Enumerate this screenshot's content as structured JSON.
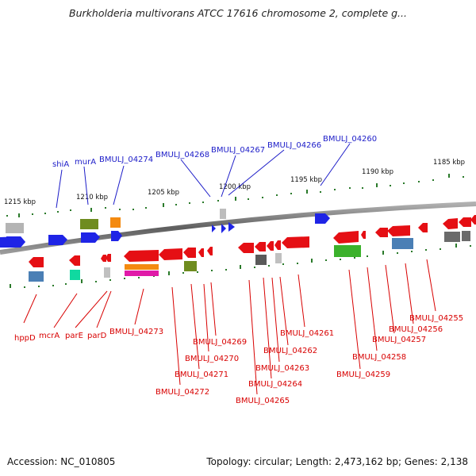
{
  "header": {
    "title": "Burkholderia multivorans ATCC 17616 chromosome 2, complete g..."
  },
  "footer": {
    "accession": "Accession: NC_010805",
    "stats": "Topology: circular; Length: 2,473,162 bp; Genes: 2,138"
  },
  "ruler": [
    "1215 kbp",
    "1210 kbp",
    "1205 kbp",
    "1200 kbp",
    "1195 kbp",
    "1190 kbp",
    "1185 kbp"
  ],
  "labels_top": [
    "shiA",
    "murA",
    "BMULJ_04274",
    "BMULJ_04268",
    "BMULJ_04267",
    "BMULJ_04266",
    "BMULJ_04260"
  ],
  "labels_bottom": [
    "hppD",
    "mcrA",
    "parE",
    "parD",
    "BMULJ_04273",
    "BMULJ_04272",
    "BMULJ_04271",
    "BMULJ_04270",
    "BMULJ_04269",
    "BMULJ_04265",
    "BMULJ_04264",
    "BMULJ_04263",
    "BMULJ_04262",
    "BMULJ_04261",
    "BMULJ_04259",
    "BMULJ_04258",
    "BMULJ_04257",
    "BMULJ_04256",
    "BMULJ_04255"
  ],
  "colors": {
    "forward_strand": "#1f24e6",
    "reverse_strand": "#e50f14",
    "backbone": "#777777"
  }
}
